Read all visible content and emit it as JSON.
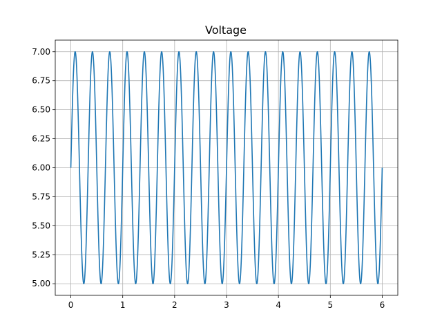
{
  "chart_data": {
    "type": "line",
    "title": "Voltage",
    "xlabel": "",
    "ylabel": "",
    "xlim": [
      -0.3,
      6.3
    ],
    "ylim": [
      4.9,
      7.1
    ],
    "x_ticks": [
      0,
      1,
      2,
      3,
      4,
      5,
      6
    ],
    "x_tick_labels": [
      "0",
      "1",
      "2",
      "3",
      "4",
      "5",
      "6"
    ],
    "y_ticks": [
      5.0,
      5.25,
      5.5,
      5.75,
      6.0,
      6.25,
      6.5,
      6.75,
      7.0
    ],
    "y_tick_labels": [
      "5.00",
      "5.25",
      "5.50",
      "5.75",
      "6.00",
      "6.25",
      "6.50",
      "6.75",
      "7.00"
    ],
    "grid": true,
    "series": [
      {
        "name": "",
        "color": "#1f77b4",
        "function": "6 + sin(2*pi*f*t)",
        "offset": 6,
        "amplitude": 1,
        "frequency_hz": 3,
        "phase": 0,
        "x_start": 0,
        "x_end": 6
      }
    ]
  }
}
